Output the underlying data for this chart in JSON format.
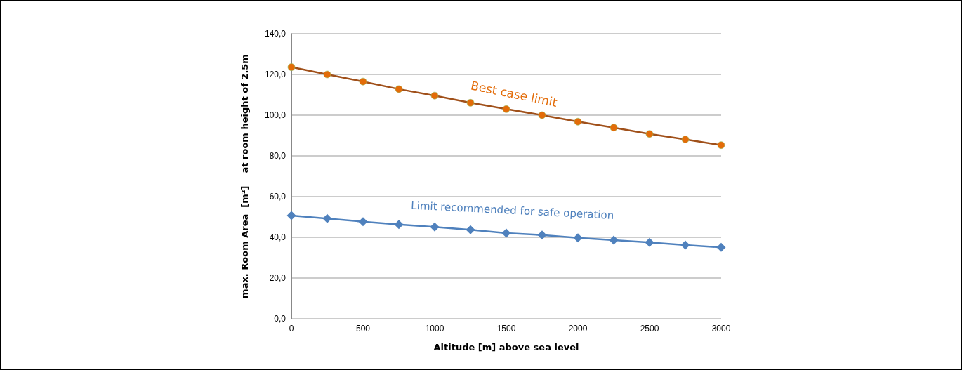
{
  "chart_data": {
    "type": "line",
    "xlabel": "Altitude [m] above sea level",
    "ylabel": "max. Room Area  [m²]    at room height of 2.5m",
    "x": [
      0,
      250,
      500,
      750,
      1000,
      1250,
      1500,
      1750,
      2000,
      2250,
      2500,
      2750,
      3000
    ],
    "series": [
      {
        "name": "Best case limit",
        "color": "#e36c09",
        "marker": "circle",
        "values": [
          123.6,
          120,
          116.5,
          112.8,
          109.6,
          106.1,
          103,
          100,
          96.8,
          93.9,
          90.8,
          88.1,
          85.3
        ]
      },
      {
        "name": "Limit recommended for safe operation",
        "color": "#4f81bd",
        "marker": "diamond",
        "values": [
          50.7,
          49.2,
          47.7,
          46.3,
          45.1,
          43.7,
          42.1,
          41.1,
          39.7,
          38.6,
          37.5,
          36.2,
          35.1
        ]
      }
    ],
    "xlim": [
      0,
      3000
    ],
    "xticks": [
      0,
      500,
      1000,
      1500,
      2000,
      2500,
      3000
    ],
    "ylim": [
      0,
      140
    ],
    "yticks": [
      {
        "value": 0,
        "label": "0,0"
      },
      {
        "value": 20,
        "label": "20,0"
      },
      {
        "value": 40,
        "label": "40,0"
      },
      {
        "value": 60,
        "label": "60,0"
      },
      {
        "value": 80,
        "label": "80,0"
      },
      {
        "value": 100,
        "label": "100,0"
      },
      {
        "value": 120,
        "label": "120,0"
      },
      {
        "value": 140,
        "label": "140,0"
      }
    ],
    "grid": "y",
    "legend": false
  }
}
